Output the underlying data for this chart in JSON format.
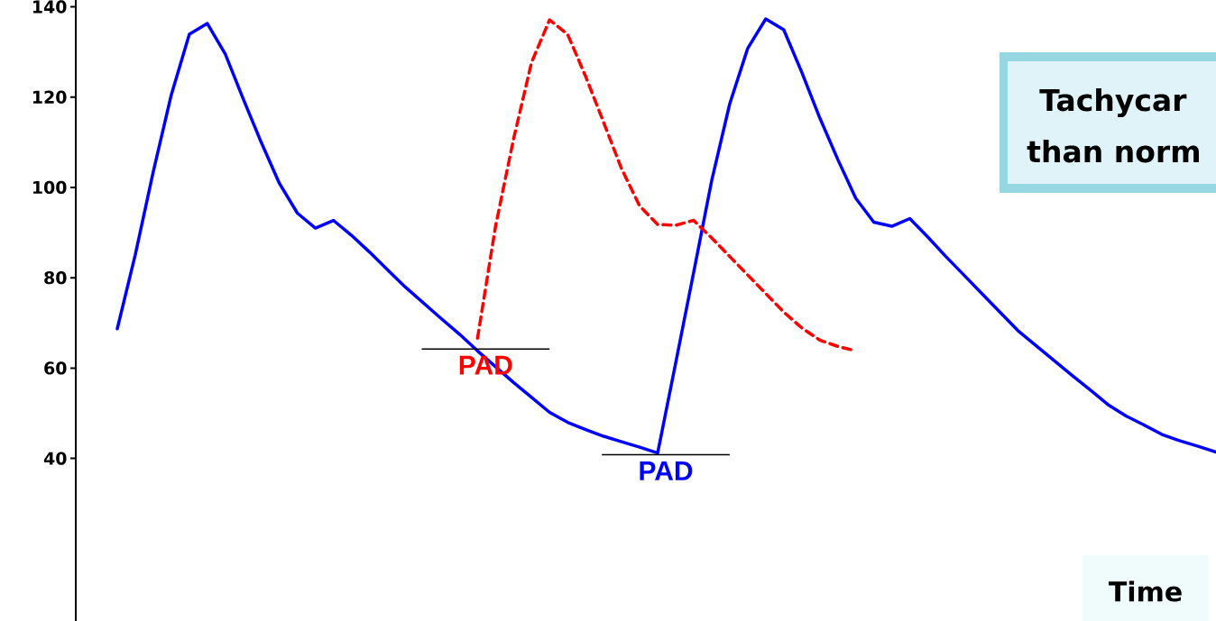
{
  "chart_data": {
    "type": "line",
    "xlabel": "Time",
    "categories": [
      null,
      null,
      null,
      null,
      null,
      null,
      null,
      null,
      null,
      null,
      null,
      null,
      null,
      null,
      null,
      null,
      null,
      null,
      null,
      null,
      null,
      null,
      null,
      null,
      null,
      null,
      null,
      null,
      null,
      null,
      null,
      null,
      null,
      null,
      null,
      null,
      null,
      null,
      null,
      null,
      null,
      null,
      null,
      null,
      null,
      null,
      null,
      null,
      null,
      null,
      null,
      null,
      null,
      null,
      null,
      null,
      null,
      null,
      null,
      null,
      null,
      null
    ],
    "ylim": [
      4,
      141.5
    ],
    "yticks": [
      40,
      60,
      80,
      100,
      120,
      140
    ],
    "grid": false,
    "marker": "none",
    "series": [
      {
        "color": "#0000ff",
        "line_style": "solid",
        "values": [
          68.7,
          85.1,
          103.5,
          120.5,
          133.9,
          136.3,
          129.5,
          119.5,
          109.9,
          100.9,
          94.3,
          91,
          92.7,
          89.4,
          85.7,
          81.8,
          77.9,
          74.4,
          70.9,
          67.5,
          63.8,
          60.3,
          56.8,
          53.5,
          50.2,
          48,
          46.4,
          44.9,
          43.7,
          42.5,
          41.2,
          61.1,
          81.2,
          101.5,
          118.5,
          130.8,
          137.3,
          134.9,
          125.5,
          115.4,
          106.2,
          97.6,
          92.3,
          91.4,
          93.1,
          89,
          84.7,
          80.6,
          76.5,
          72.4,
          68.3,
          65,
          61.7,
          58.4,
          55.2,
          51.9,
          49.4,
          47.4,
          45.3,
          43.9,
          42.7,
          41.4
        ]
      },
      {
        "color": "#ff0000",
        "line_style": "dashed",
        "values": [
          null,
          null,
          null,
          null,
          null,
          null,
          null,
          null,
          null,
          null,
          null,
          null,
          null,
          null,
          null,
          null,
          null,
          null,
          null,
          null,
          66.6,
          91.4,
          110.7,
          127.7,
          137.1,
          133.9,
          124.6,
          114.4,
          104.1,
          95.9,
          91.8,
          91.6,
          92.7,
          88.8,
          84.7,
          80.6,
          76.5,
          72.4,
          68.9,
          66.2,
          64.8,
          63.8,
          null,
          null,
          null,
          null,
          null,
          null,
          null,
          null,
          null,
          null,
          null,
          null,
          null,
          null,
          null,
          null,
          null,
          null,
          null,
          null
        ]
      }
    ],
    "ref_lines": [
      {
        "axis": "y",
        "value": 64.2,
        "label": "PAD"
      },
      {
        "axis": "y",
        "value": 40.8,
        "label": "PAD"
      }
    ],
    "annotations": [
      "Tachycar",
      "than norm"
    ]
  }
}
